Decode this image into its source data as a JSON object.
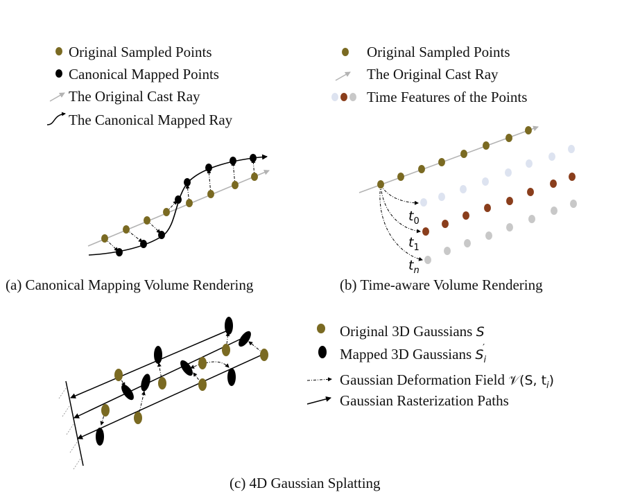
{
  "colors": {
    "original": "#7a6a22",
    "mapped": "#000000",
    "ray": "#b3b3b3",
    "time_light": "#dde3f0",
    "time_brown": "#8a3e1c",
    "time_gray": "#c8c8c8"
  },
  "panel_a": {
    "legend": {
      "original_points": "Original Sampled Points",
      "canonical_points": "Canonical Mapped Points",
      "cast_ray": "The Original Cast Ray",
      "canonical_ray": "The Canonical Mapped Ray"
    },
    "caption": "(a) Canonical Mapping Volume Rendering"
  },
  "panel_b": {
    "legend": {
      "original_points": "Original Sampled Points",
      "cast_ray": "The Original Cast Ray",
      "time_features": "Time Features of the Points"
    },
    "time_labels": [
      "t",
      "0",
      "t",
      "1",
      "t",
      "n"
    ],
    "caption": "(b) Time-aware Volume Rendering"
  },
  "panel_c": {
    "legend": {
      "original_gaussians": "Original 3D Gaussians ",
      "original_gaussians_symbol": "S",
      "mapped_gaussians": "Mapped 3D Gaussians ",
      "mapped_gaussians_symbol": "S",
      "mapped_gaussians_sub": "i",
      "mapped_gaussians_prime": "′",
      "deformation_field": "Gaussian Deformation Field ",
      "deformation_symbol": "𝒱(S, t",
      "deformation_sub": "i",
      "deformation_close": ")",
      "rasterization_paths": "Gaussian Rasterization Paths"
    },
    "caption": "(c) 4D Gaussian Splatting"
  }
}
